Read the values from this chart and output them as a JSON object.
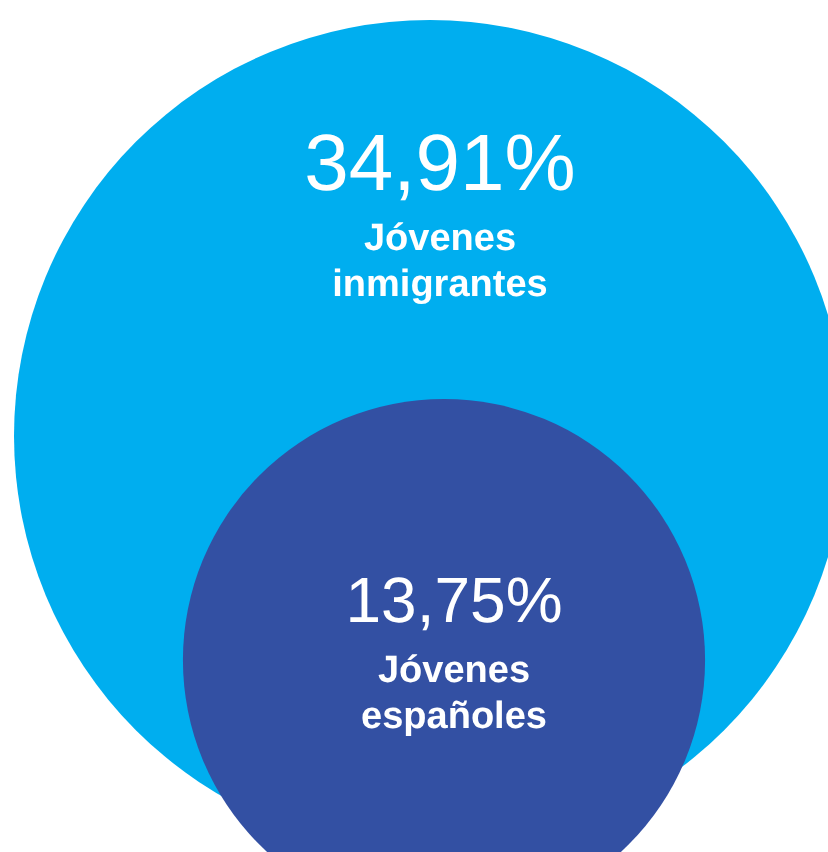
{
  "chart_data": {
    "type": "other",
    "categories": [
      "Jóvenes inmigrantes",
      "Jóvenes españoles"
    ],
    "values": [
      34.91,
      13.75
    ],
    "value_labels": [
      "34,91%",
      "13,75%"
    ],
    "colors": [
      "#00aeef",
      "#3350a3"
    ]
  }
}
